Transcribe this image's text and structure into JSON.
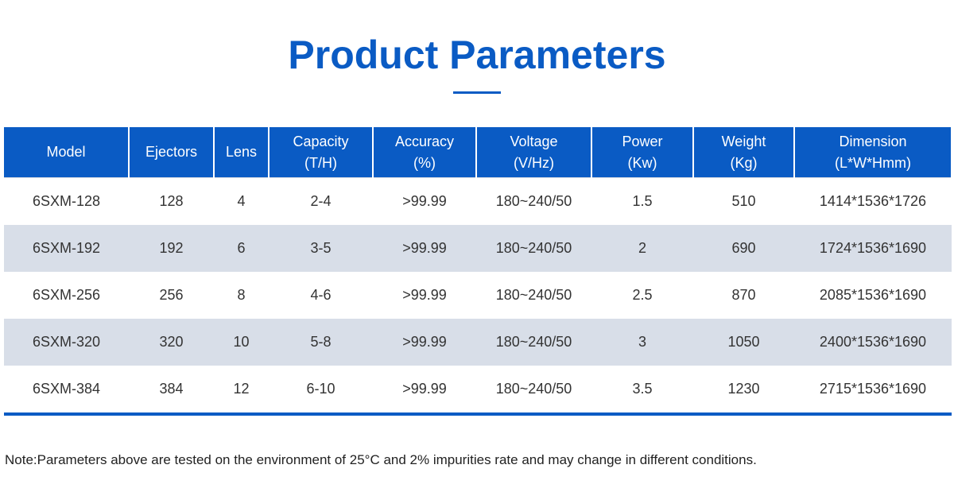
{
  "title": "Product Parameters",
  "headers": [
    {
      "l1": "Model",
      "l2": ""
    },
    {
      "l1": "Ejectors",
      "l2": ""
    },
    {
      "l1": "Lens",
      "l2": ""
    },
    {
      "l1": "Capacity",
      "l2": "(T/H)"
    },
    {
      "l1": "Accuracy",
      "l2": "(%)"
    },
    {
      "l1": "Voltage",
      "l2": "(V/Hz)"
    },
    {
      "l1": "Power",
      "l2": "(Kw)"
    },
    {
      "l1": "Weight",
      "l2": "(Kg)"
    },
    {
      "l1": "Dimension",
      "l2": "(L*W*Hmm)"
    }
  ],
  "rows": [
    [
      "6SXM-128",
      "128",
      "4",
      "2-4",
      ">99.99",
      "180~240/50",
      "1.5",
      "510",
      "1414*1536*1726"
    ],
    [
      "6SXM-192",
      "192",
      "6",
      "3-5",
      ">99.99",
      "180~240/50",
      "2",
      "690",
      "1724*1536*1690"
    ],
    [
      "6SXM-256",
      "256",
      "8",
      "4-6",
      ">99.99",
      "180~240/50",
      "2.5",
      "870",
      "2085*1536*1690"
    ],
    [
      "6SXM-320",
      "320",
      "10",
      "5-8",
      ">99.99",
      "180~240/50",
      "3",
      "1050",
      "2400*1536*1690"
    ],
    [
      "6SXM-384",
      "384",
      "12",
      "6-10",
      ">99.99",
      "180~240/50",
      "3.5",
      "1230",
      "2715*1536*1690"
    ]
  ],
  "note": "Note:Parameters above are tested on the environment of 25°C and 2% impurities rate and may change in different conditions."
}
